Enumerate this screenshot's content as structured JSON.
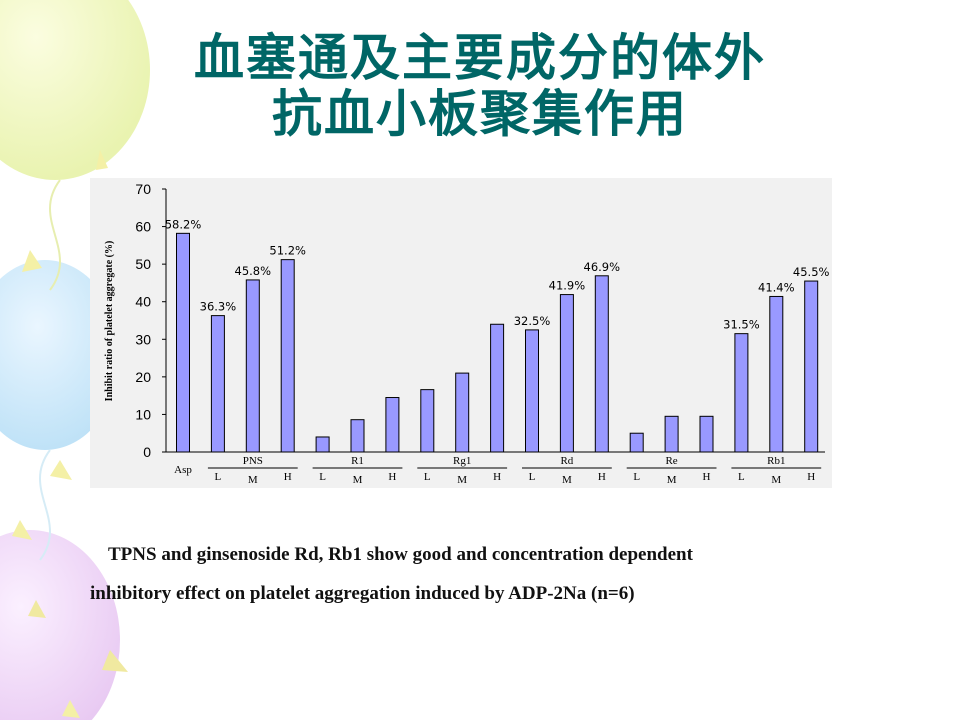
{
  "slide": {
    "title_line1": "血塞通及主要成分的体外",
    "title_line2": "抗血小板聚集作用",
    "caption_line1": "TPNS and ginsenoside Rd, Rb1 show good and concentration dependent",
    "caption_line2": "inhibitory effect on platelet aggregation  induced by ADP-2Na (n=6)"
  },
  "colors": {
    "title": "#006666",
    "bar": "#9999ff",
    "chart_bg": "#f1f1f1"
  },
  "chart_data": {
    "type": "bar",
    "ylabel": "Inhibit ratio of platelet aggregate (%)",
    "xlabel": "",
    "ylim": [
      0,
      70
    ],
    "yticks": [
      0,
      10,
      20,
      30,
      40,
      50,
      60,
      70
    ],
    "grid": false,
    "groups": [
      {
        "name": "Asp",
        "levels": [
          ""
        ],
        "values": [
          58.2
        ],
        "labels": [
          "58.2%"
        ]
      },
      {
        "name": "PNS",
        "levels": [
          "L",
          "M",
          "H"
        ],
        "values": [
          36.3,
          45.8,
          51.2
        ],
        "labels": [
          "36.3%",
          "45.8%",
          "51.2%"
        ]
      },
      {
        "name": "R1",
        "levels": [
          "L",
          "M",
          "H"
        ],
        "values": [
          4,
          8.6,
          14.5
        ],
        "labels": [
          "",
          "",
          ""
        ]
      },
      {
        "name": "Rg1",
        "levels": [
          "L",
          "M",
          "H"
        ],
        "values": [
          16.6,
          21,
          34
        ],
        "labels": [
          "",
          "",
          ""
        ]
      },
      {
        "name": "Rd",
        "levels": [
          "L",
          "M",
          "H"
        ],
        "values": [
          32.5,
          41.9,
          46.9
        ],
        "labels": [
          "32.5%",
          "41.9%",
          "46.9%"
        ]
      },
      {
        "name": "Re",
        "levels": [
          "L",
          "M",
          "H"
        ],
        "values": [
          5,
          9.5,
          9.5
        ],
        "labels": [
          "",
          "",
          ""
        ]
      },
      {
        "name": "Rb1",
        "levels": [
          "L",
          "M",
          "H"
        ],
        "values": [
          31.5,
          41.4,
          45.5
        ],
        "labels": [
          "31.5%",
          "41.4%",
          "45.5%"
        ]
      }
    ]
  }
}
